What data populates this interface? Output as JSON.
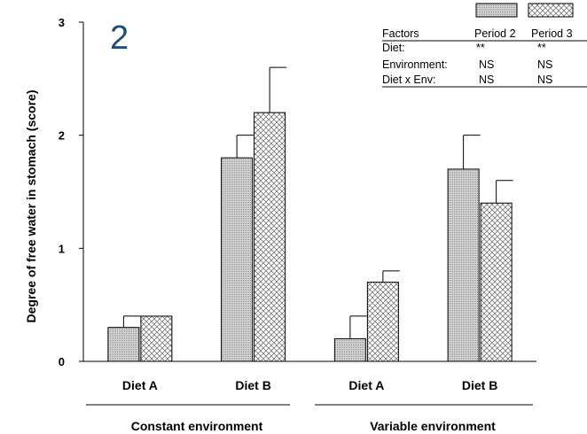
{
  "panel_label": "2",
  "chart_data": {
    "type": "bar",
    "ylabel": "Degree of free water in stomach (score)",
    "xlabel": "",
    "ylim": [
      0,
      3
    ],
    "yticks": [
      "0",
      "1",
      "2",
      "3"
    ],
    "categories": [
      "Diet A",
      "Diet B",
      "Diet A",
      "Diet B"
    ],
    "groups": [
      "Constant environment",
      "Variable environment"
    ],
    "series": [
      {
        "name": "Period 2",
        "values": [
          0.3,
          1.8,
          0.2,
          1.7
        ],
        "errors": [
          0.1,
          0.2,
          0.2,
          0.3
        ],
        "pattern": "dense-dots",
        "color": "#c8c8c8"
      },
      {
        "name": "Period 3",
        "values": [
          0.4,
          2.2,
          0.7,
          1.4
        ],
        "errors": [
          0.0,
          0.4,
          0.1,
          0.2
        ],
        "pattern": "crosshatch",
        "color": "#ececec"
      }
    ],
    "legend_placement": "top-right",
    "grid": false
  },
  "stats_table": {
    "headers": [
      "Factors",
      "Period 2",
      "Period 3"
    ],
    "rows": [
      {
        "label": "Diet:",
        "p2": "**",
        "p3": "**"
      },
      {
        "label": "Environment:",
        "p2": "NS",
        "p3": "NS"
      },
      {
        "label": "Diet x Env:",
        "p2": "NS",
        "p3": "NS"
      }
    ]
  }
}
